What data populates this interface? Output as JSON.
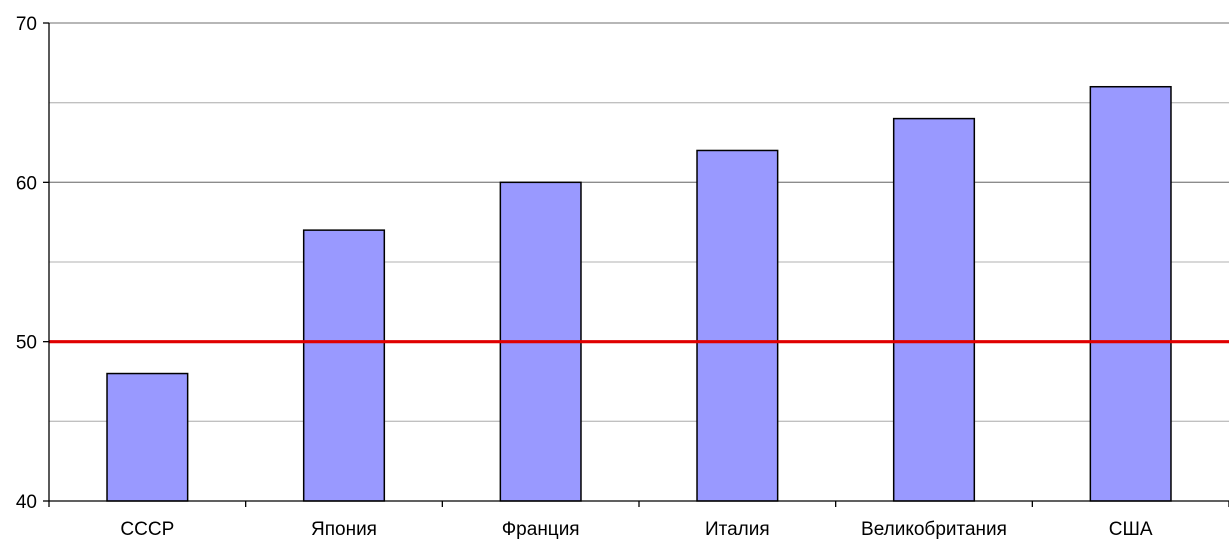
{
  "chart_data": {
    "type": "bar",
    "categories": [
      "СССР",
      "Япония",
      "Франция",
      "Италия",
      "Великобритания",
      "США"
    ],
    "values": [
      48,
      57,
      60,
      62,
      64,
      66
    ],
    "ylim": [
      40,
      70
    ],
    "y_ticks": [
      40,
      50,
      60,
      70
    ],
    "minor_grid_step": 5,
    "reference_line": {
      "value": 50,
      "color": "#e00000"
    },
    "bar_color": "#9999ff",
    "grid": true,
    "legend": "none"
  }
}
